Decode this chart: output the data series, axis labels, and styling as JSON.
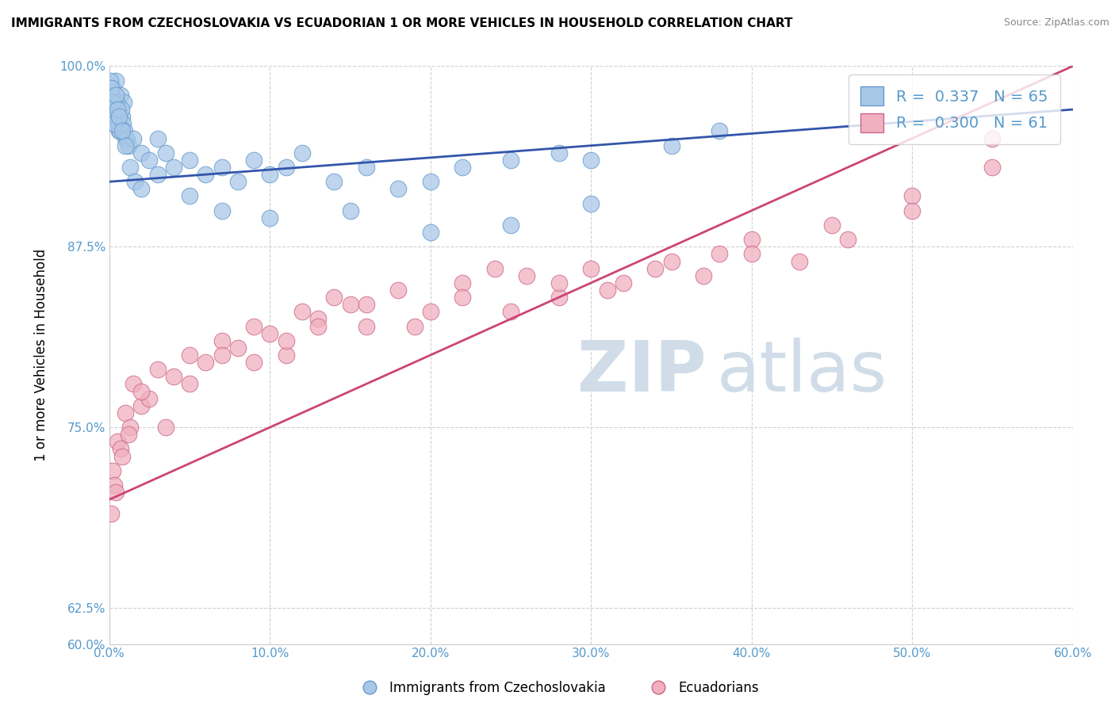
{
  "title": "IMMIGRANTS FROM CZECHOSLOVAKIA VS ECUADORIAN 1 OR MORE VEHICLES IN HOUSEHOLD CORRELATION CHART",
  "source": "Source: ZipAtlas.com",
  "xlabel_blue": "Immigrants from Czechoslovakia",
  "xlabel_pink": "Ecuadorians",
  "ylabel": "1 or more Vehicles in Household",
  "blue_R": 0.337,
  "blue_N": 65,
  "pink_R": 0.3,
  "pink_N": 61,
  "blue_color": "#a8c8e8",
  "blue_edge": "#6699cc",
  "pink_color": "#f0b0c0",
  "pink_edge": "#cc6688",
  "trend_blue": "#3355aa",
  "trend_pink": "#cc4477",
  "watermark_color": "#d0dde8",
  "xmin": 0.0,
  "xmax": 60.0,
  "ymin": 60.0,
  "ymax": 100.0,
  "xticks": [
    0,
    10,
    20,
    30,
    40,
    50,
    60
  ],
  "yticks": [
    60.0,
    62.5,
    75.0,
    87.5,
    100.0
  ],
  "tick_color": "#5599cc",
  "blue_x": [
    0.1,
    0.2,
    0.3,
    0.4,
    0.5,
    0.6,
    0.7,
    0.8,
    0.9,
    1.0,
    0.15,
    0.25,
    0.35,
    0.45,
    0.55,
    0.65,
    0.75,
    0.85,
    0.95,
    1.1,
    1.2,
    1.5,
    2.0,
    2.5,
    3.0,
    3.5,
    4.0,
    5.0,
    6.0,
    7.0,
    8.0,
    9.0,
    10.0,
    11.0,
    12.0,
    14.0,
    16.0,
    18.0,
    20.0,
    22.0,
    25.0,
    28.0,
    30.0,
    35.0,
    38.0,
    0.05,
    0.1,
    0.2,
    0.3,
    0.4,
    0.5,
    0.6,
    0.8,
    1.0,
    1.3,
    1.6,
    2.0,
    3.0,
    5.0,
    7.0,
    10.0,
    15.0,
    20.0,
    25.0,
    30.0
  ],
  "blue_y": [
    97.5,
    98.5,
    96.0,
    99.0,
    97.0,
    95.5,
    98.0,
    96.5,
    97.5,
    95.0,
    98.0,
    97.0,
    96.5,
    97.5,
    96.0,
    95.5,
    97.0,
    96.0,
    95.5,
    95.0,
    94.5,
    95.0,
    94.0,
    93.5,
    95.0,
    94.0,
    93.0,
    93.5,
    92.5,
    93.0,
    92.0,
    93.5,
    92.5,
    93.0,
    94.0,
    92.0,
    93.0,
    91.5,
    92.0,
    93.0,
    93.5,
    94.0,
    93.5,
    94.5,
    95.5,
    99.0,
    98.5,
    97.5,
    96.0,
    98.0,
    97.0,
    96.5,
    95.5,
    94.5,
    93.0,
    92.0,
    91.5,
    92.5,
    91.0,
    90.0,
    89.5,
    90.0,
    88.5,
    89.0,
    90.5
  ],
  "pink_x": [
    0.1,
    0.2,
    0.3,
    0.5,
    0.7,
    1.0,
    1.3,
    1.5,
    2.0,
    2.5,
    3.0,
    4.0,
    5.0,
    6.0,
    7.0,
    8.0,
    9.0,
    10.0,
    11.0,
    12.0,
    13.0,
    14.0,
    15.0,
    16.0,
    18.0,
    20.0,
    22.0,
    24.0,
    26.0,
    28.0,
    30.0,
    32.0,
    35.0,
    38.0,
    40.0,
    45.0,
    50.0,
    55.0,
    0.4,
    0.8,
    1.2,
    2.0,
    3.5,
    5.0,
    7.0,
    9.0,
    11.0,
    13.0,
    16.0,
    19.0,
    22.0,
    25.0,
    28.0,
    31.0,
    34.0,
    37.0,
    40.0,
    43.0,
    46.0,
    50.0,
    55.0
  ],
  "pink_y": [
    69.0,
    72.0,
    71.0,
    74.0,
    73.5,
    76.0,
    75.0,
    78.0,
    76.5,
    77.0,
    79.0,
    78.5,
    80.0,
    79.5,
    81.0,
    80.5,
    82.0,
    81.5,
    80.0,
    83.0,
    82.5,
    84.0,
    83.5,
    82.0,
    84.5,
    83.0,
    85.0,
    86.0,
    85.5,
    84.0,
    86.0,
    85.0,
    86.5,
    87.0,
    88.0,
    89.0,
    91.0,
    95.0,
    70.5,
    73.0,
    74.5,
    77.5,
    75.0,
    78.0,
    80.0,
    79.5,
    81.0,
    82.0,
    83.5,
    82.0,
    84.0,
    83.0,
    85.0,
    84.5,
    86.0,
    85.5,
    87.0,
    86.5,
    88.0,
    90.0,
    93.0
  ],
  "pink_trend_y0": 70.0,
  "pink_trend_y1": 100.0,
  "blue_trend_y0": 92.0,
  "blue_trend_y1": 97.0
}
